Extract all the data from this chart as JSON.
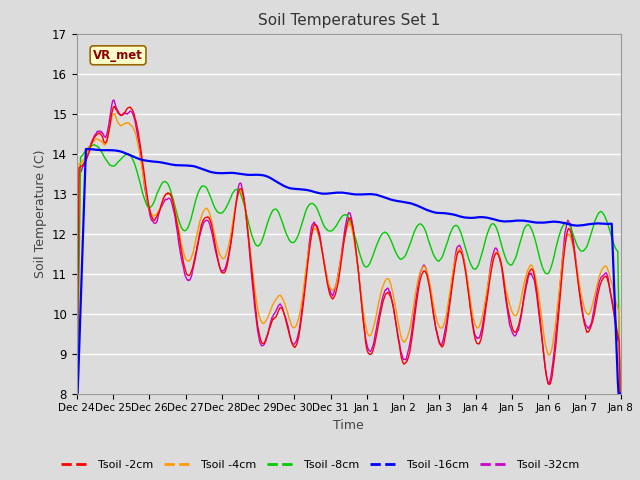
{
  "title": "Soil Temperatures Set 1",
  "xlabel": "Time",
  "ylabel": "Soil Temperature (C)",
  "ylim": [
    8.0,
    17.0
  ],
  "yticks": [
    8.0,
    9.0,
    10.0,
    11.0,
    12.0,
    13.0,
    14.0,
    15.0,
    16.0,
    17.0
  ],
  "xtick_labels": [
    "Dec 24",
    "Dec 25",
    "Dec 26",
    "Dec 27",
    "Dec 28",
    "Dec 29",
    "Dec 30",
    "Dec 31",
    "Jan 1",
    "Jan 2",
    "Jan 3",
    "Jan 4",
    "Jan 5",
    "Jan 6",
    "Jan 7",
    "Jan 8"
  ],
  "annotation_text": "VR_met",
  "annotation_bg": "#ffffcc",
  "annotation_border": "#996600",
  "colors": {
    "Tsoil -2cm": "#ff0000",
    "Tsoil -4cm": "#ff9900",
    "Tsoil -8cm": "#00cc00",
    "Tsoil -16cm": "#0000ff",
    "Tsoil -32cm": "#cc00cc"
  },
  "bg_color": "#dcdcdc",
  "plot_bg": "#dcdcdc",
  "grid_color": "#ffffff",
  "legend_labels": [
    "Tsoil -2cm",
    "Tsoil -4cm",
    "Tsoil -8cm",
    "Tsoil -16cm",
    "Tsoil -32cm"
  ]
}
